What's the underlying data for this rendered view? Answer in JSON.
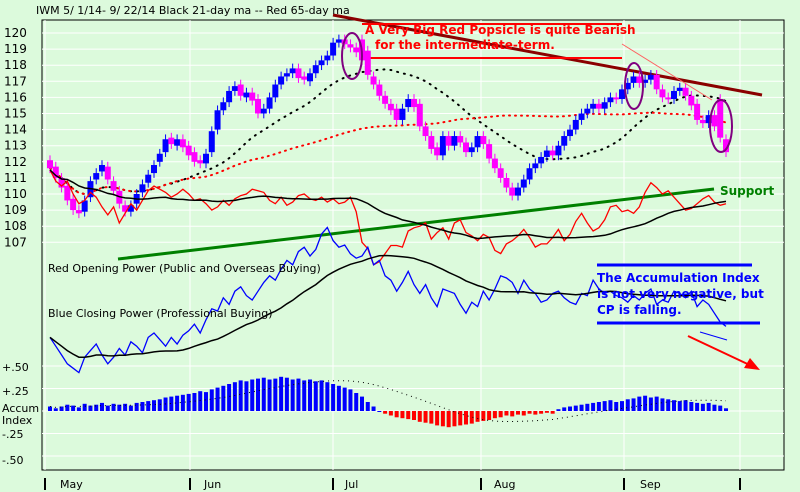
{
  "chart_data": {
    "type": "candlestick",
    "title": "IWM  5/ 1/14- 9/ 22/14   Black 21-day ma --  Red 65-day ma",
    "annotations": [
      "A Very Big Red Popsicle is quite Bearish",
      "for the intermediate-term.",
      "Support",
      "The Accumulation Index",
      "is not very negative, but",
      "CP is falling."
    ],
    "panel_labels": [
      "Red Opening Power (Public and Overseas Buying)",
      "Blue Closing Power (Professional Buying)"
    ],
    "y_ticks": [
      "120",
      "119",
      "118",
      "117",
      "116",
      "115",
      "114",
      "113",
      "112",
      "111",
      "110",
      "109",
      "108",
      "107"
    ],
    "y_range": [
      107,
      120
    ],
    "accum_labels": [
      "+.50",
      "+.25",
      "Accum",
      "Index",
      "-.25",
      "-.50"
    ],
    "x_months": [
      "May",
      "Jun",
      "Jul",
      "Aug",
      "Sep"
    ],
    "closes": [
      111.6,
      111.0,
      110.4,
      109.6,
      109.0,
      108.8,
      109.6,
      110.8,
      111.3,
      111.8,
      110.9,
      110.2,
      109.4,
      108.9,
      109.3,
      110.0,
      110.6,
      111.2,
      111.8,
      112.5,
      113.4,
      113.1,
      113.4,
      112.9,
      112.4,
      112.0,
      111.9,
      112.5,
      113.9,
      115.2,
      115.7,
      116.4,
      116.7,
      116.1,
      116.3,
      115.8,
      115.0,
      115.3,
      116.0,
      116.8,
      117.3,
      117.5,
      117.8,
      117.2,
      117.1,
      117.5,
      118.0,
      118.3,
      118.6,
      119.4,
      119.6,
      119.3,
      119.1,
      118.8,
      118.3,
      117.4,
      116.8,
      116.1,
      115.6,
      115.2,
      114.6,
      115.3,
      115.9,
      115.4,
      114.2,
      113.6,
      112.8,
      112.4,
      113.6,
      113.0,
      113.6,
      113.2,
      112.6,
      112.9,
      113.6,
      113.1,
      112.2,
      111.6,
      111.0,
      110.4,
      109.9,
      110.4,
      110.9,
      111.6,
      111.9,
      112.3,
      112.7,
      112.4,
      113.0,
      113.6,
      114.0,
      114.6,
      115.0,
      115.3,
      115.6,
      115.3,
      115.7,
      116.0,
      115.9,
      116.5,
      116.9,
      117.3,
      116.9,
      117.1,
      117.4,
      116.5,
      116.0,
      115.9,
      116.4,
      116.6,
      116.1,
      115.5,
      114.6,
      114.4,
      114.9,
      114.2,
      113.5,
      112.6
    ],
    "opens": [
      112.1,
      111.7,
      111.0,
      110.5,
      109.7,
      109.0,
      108.9,
      109.8,
      110.9,
      111.4,
      111.7,
      110.8,
      110.2,
      109.3,
      108.9,
      109.4,
      110.1,
      110.7,
      111.3,
      112.0,
      112.6,
      113.5,
      113.0,
      113.4,
      113.0,
      112.6,
      112.1,
      111.9,
      112.6,
      114.0,
      115.2,
      115.7,
      116.4,
      116.8,
      116.0,
      116.3,
      115.9,
      115.0,
      115.3,
      116.0,
      116.8,
      117.3,
      117.5,
      117.8,
      117.3,
      117.0,
      117.5,
      118.0,
      118.3,
      118.6,
      119.4,
      119.6,
      119.3,
      119.1,
      119.6,
      118.9,
      117.3,
      116.8,
      116.1,
      115.6,
      115.3,
      114.6,
      115.4,
      115.9,
      115.6,
      114.2,
      113.6,
      112.9,
      112.4,
      113.6,
      113.0,
      113.6,
      113.2,
      112.6,
      112.9,
      113.6,
      113.1,
      112.2,
      111.6,
      111.0,
      110.4,
      109.9,
      110.4,
      110.9,
      111.6,
      111.9,
      112.3,
      112.7,
      112.4,
      113.0,
      113.6,
      114.0,
      114.6,
      115.0,
      115.3,
      115.6,
      115.3,
      115.7,
      116.0,
      115.9,
      116.5,
      116.9,
      117.3,
      116.9,
      117.1,
      117.4,
      116.5,
      116.0,
      115.9,
      116.4,
      116.6,
      116.1,
      115.6,
      114.6,
      114.4,
      114.9,
      115.9,
      113.4
    ],
    "open_power": [
      111.5,
      110.8,
      110.5,
      110.8,
      110.0,
      109.4,
      109.6,
      110.1,
      109.8,
      109.2,
      108.7,
      109.2,
      108.2,
      108.8,
      109.4,
      109.0,
      109.6,
      110.2,
      110.5,
      110.3,
      110.1,
      109.8,
      110.0,
      110.3,
      110.0,
      109.6,
      109.7,
      109.4,
      109.0,
      109.2,
      109.6,
      109.3,
      109.7,
      109.9,
      110.0,
      110.3,
      110.2,
      110.1,
      109.6,
      109.4,
      109.8,
      109.3,
      109.5,
      109.9,
      110.0,
      109.7,
      109.6,
      109.8,
      109.5,
      109.7,
      109.4,
      109.5,
      109.8,
      108.9,
      107.0,
      106.6,
      105.6,
      105.8,
      106.3,
      106.8,
      106.8,
      106.7,
      107.7,
      107.9,
      108.0,
      108.2,
      107.2,
      107.6,
      107.9,
      107.2,
      108.2,
      108.4,
      107.6,
      107.4,
      107.1,
      107.5,
      107.3,
      106.5,
      106.3,
      106.9,
      107.1,
      107.4,
      107.8,
      107.3,
      106.7,
      106.9,
      106.9,
      107.3,
      107.8,
      107.1,
      107.5,
      108.3,
      108.8,
      108.2,
      107.7,
      107.9,
      108.4,
      109.2,
      109.3,
      108.9,
      109.0,
      108.8,
      109.2,
      110.1,
      110.7,
      110.4,
      110.0,
      110.2,
      109.8,
      109.4,
      109.0,
      109.1,
      109.4,
      109.7,
      109.9,
      109.5,
      109.3,
      109.4
    ],
    "closing_power": [
      106.8,
      106.4,
      106.0,
      105.6,
      105.4,
      105.2,
      105.9,
      106.2,
      106.5,
      106.0,
      105.6,
      105.9,
      106.3,
      106.0,
      106.6,
      106.4,
      106.1,
      106.8,
      107.0,
      106.7,
      106.4,
      106.8,
      106.5,
      106.9,
      107.1,
      107.4,
      107.0,
      107.6,
      108.1,
      108.0,
      108.6,
      108.3,
      108.9,
      109.1,
      108.7,
      108.5,
      108.9,
      109.3,
      109.6,
      109.4,
      109.9,
      110.3,
      110.1,
      110.7,
      110.9,
      110.5,
      110.8,
      111.5,
      111.8,
      111.2,
      110.9,
      111.0,
      110.6,
      110.4,
      110.5,
      110.9,
      110.1,
      110.3,
      109.6,
      109.4,
      108.9,
      109.3,
      109.8,
      109.2,
      108.8,
      109.2,
      108.6,
      108.2,
      109.0,
      108.9,
      108.8,
      108.3,
      107.9,
      108.4,
      108.2,
      108.9,
      108.5,
      109.0,
      109.6,
      109.5,
      109.3,
      108.8,
      109.4,
      109.0,
      108.8,
      108.4,
      108.5,
      108.8,
      108.9,
      108.6,
      108.4,
      108.3,
      108.8,
      108.7,
      109.4,
      109.0,
      108.8,
      108.9,
      108.7,
      108.6,
      108.4,
      108.7,
      108.5,
      108.8,
      109.0,
      108.3,
      108.5,
      108.4,
      108.9,
      108.8,
      108.6,
      108.9,
      108.2,
      108.5,
      108.3,
      107.9,
      107.5,
      107.3
    ],
    "accum_index": [
      0.05,
      0.03,
      0.05,
      0.07,
      0.06,
      0.04,
      0.08,
      0.06,
      0.07,
      0.09,
      0.06,
      0.08,
      0.07,
      0.08,
      0.06,
      0.09,
      0.1,
      0.11,
      0.12,
      0.13,
      0.15,
      0.16,
      0.17,
      0.18,
      0.19,
      0.2,
      0.22,
      0.21,
      0.24,
      0.26,
      0.28,
      0.3,
      0.32,
      0.34,
      0.33,
      0.35,
      0.36,
      0.37,
      0.35,
      0.36,
      0.38,
      0.37,
      0.35,
      0.36,
      0.34,
      0.35,
      0.33,
      0.34,
      0.32,
      0.3,
      0.28,
      0.26,
      0.24,
      0.2,
      0.16,
      0.1,
      0.05,
      0.0,
      -0.03,
      -0.05,
      -0.07,
      -0.08,
      -0.09,
      -0.1,
      -0.12,
      -0.13,
      -0.14,
      -0.16,
      -0.17,
      -0.18,
      -0.17,
      -0.16,
      -0.15,
      -0.14,
      -0.12,
      -0.11,
      -0.1,
      -0.08,
      -0.07,
      -0.05,
      -0.06,
      -0.04,
      -0.05,
      -0.03,
      -0.04,
      -0.03,
      -0.02,
      -0.03,
      0.02,
      0.04,
      0.05,
      0.06,
      0.07,
      0.08,
      0.09,
      0.1,
      0.11,
      0.12,
      0.1,
      0.11,
      0.13,
      0.14,
      0.16,
      0.17,
      0.15,
      0.16,
      0.14,
      0.13,
      0.12,
      0.11,
      0.12,
      0.1,
      0.09,
      0.08,
      0.09,
      0.07,
      0.06,
      0.03
    ],
    "colors": {
      "up": "#0000ff",
      "down": "#ff00ff",
      "ma21": "#000000",
      "ma65": "#ff0000",
      "support": "#008000",
      "resistance": "#8b0000",
      "annot_red": "#ff0000",
      "annot_blue": "#0000ff",
      "bg": "#dcfadc"
    }
  }
}
